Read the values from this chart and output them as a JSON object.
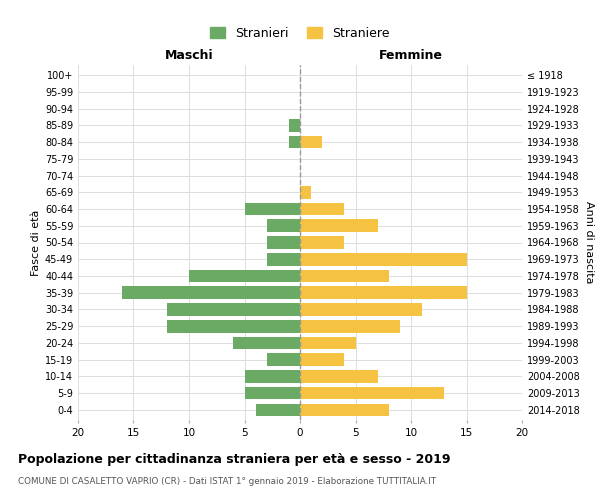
{
  "age_groups": [
    "0-4",
    "5-9",
    "10-14",
    "15-19",
    "20-24",
    "25-29",
    "30-34",
    "35-39",
    "40-44",
    "45-49",
    "50-54",
    "55-59",
    "60-64",
    "65-69",
    "70-74",
    "75-79",
    "80-84",
    "85-89",
    "90-94",
    "95-99",
    "100+"
  ],
  "birth_years": [
    "2014-2018",
    "2009-2013",
    "2004-2008",
    "1999-2003",
    "1994-1998",
    "1989-1993",
    "1984-1988",
    "1979-1983",
    "1974-1978",
    "1969-1973",
    "1964-1968",
    "1959-1963",
    "1954-1958",
    "1949-1953",
    "1944-1948",
    "1939-1943",
    "1934-1938",
    "1929-1933",
    "1924-1928",
    "1919-1923",
    "≤ 1918"
  ],
  "maschi": [
    4,
    5,
    5,
    3,
    6,
    12,
    12,
    16,
    10,
    3,
    3,
    3,
    5,
    0,
    0,
    0,
    1,
    1,
    0,
    0,
    0
  ],
  "femmine": [
    8,
    13,
    7,
    4,
    5,
    9,
    11,
    15,
    8,
    15,
    4,
    7,
    4,
    1,
    0,
    0,
    2,
    0,
    0,
    0,
    0
  ],
  "male_color": "#6aaa64",
  "female_color": "#f5c242",
  "background_color": "#ffffff",
  "grid_color": "#dddddd",
  "title": "Popolazione per cittadinanza straniera per età e sesso - 2019",
  "subtitle": "COMUNE DI CASALETTO VAPRIO (CR) - Dati ISTAT 1° gennaio 2019 - Elaborazione TUTTITALIA.IT",
  "legend_male": "Stranieri",
  "legend_female": "Straniere",
  "xlabel_left": "Maschi",
  "xlabel_right": "Femmine",
  "ylabel_left": "Fasce di età",
  "ylabel_right": "Anni di nascita",
  "xlim": 20
}
